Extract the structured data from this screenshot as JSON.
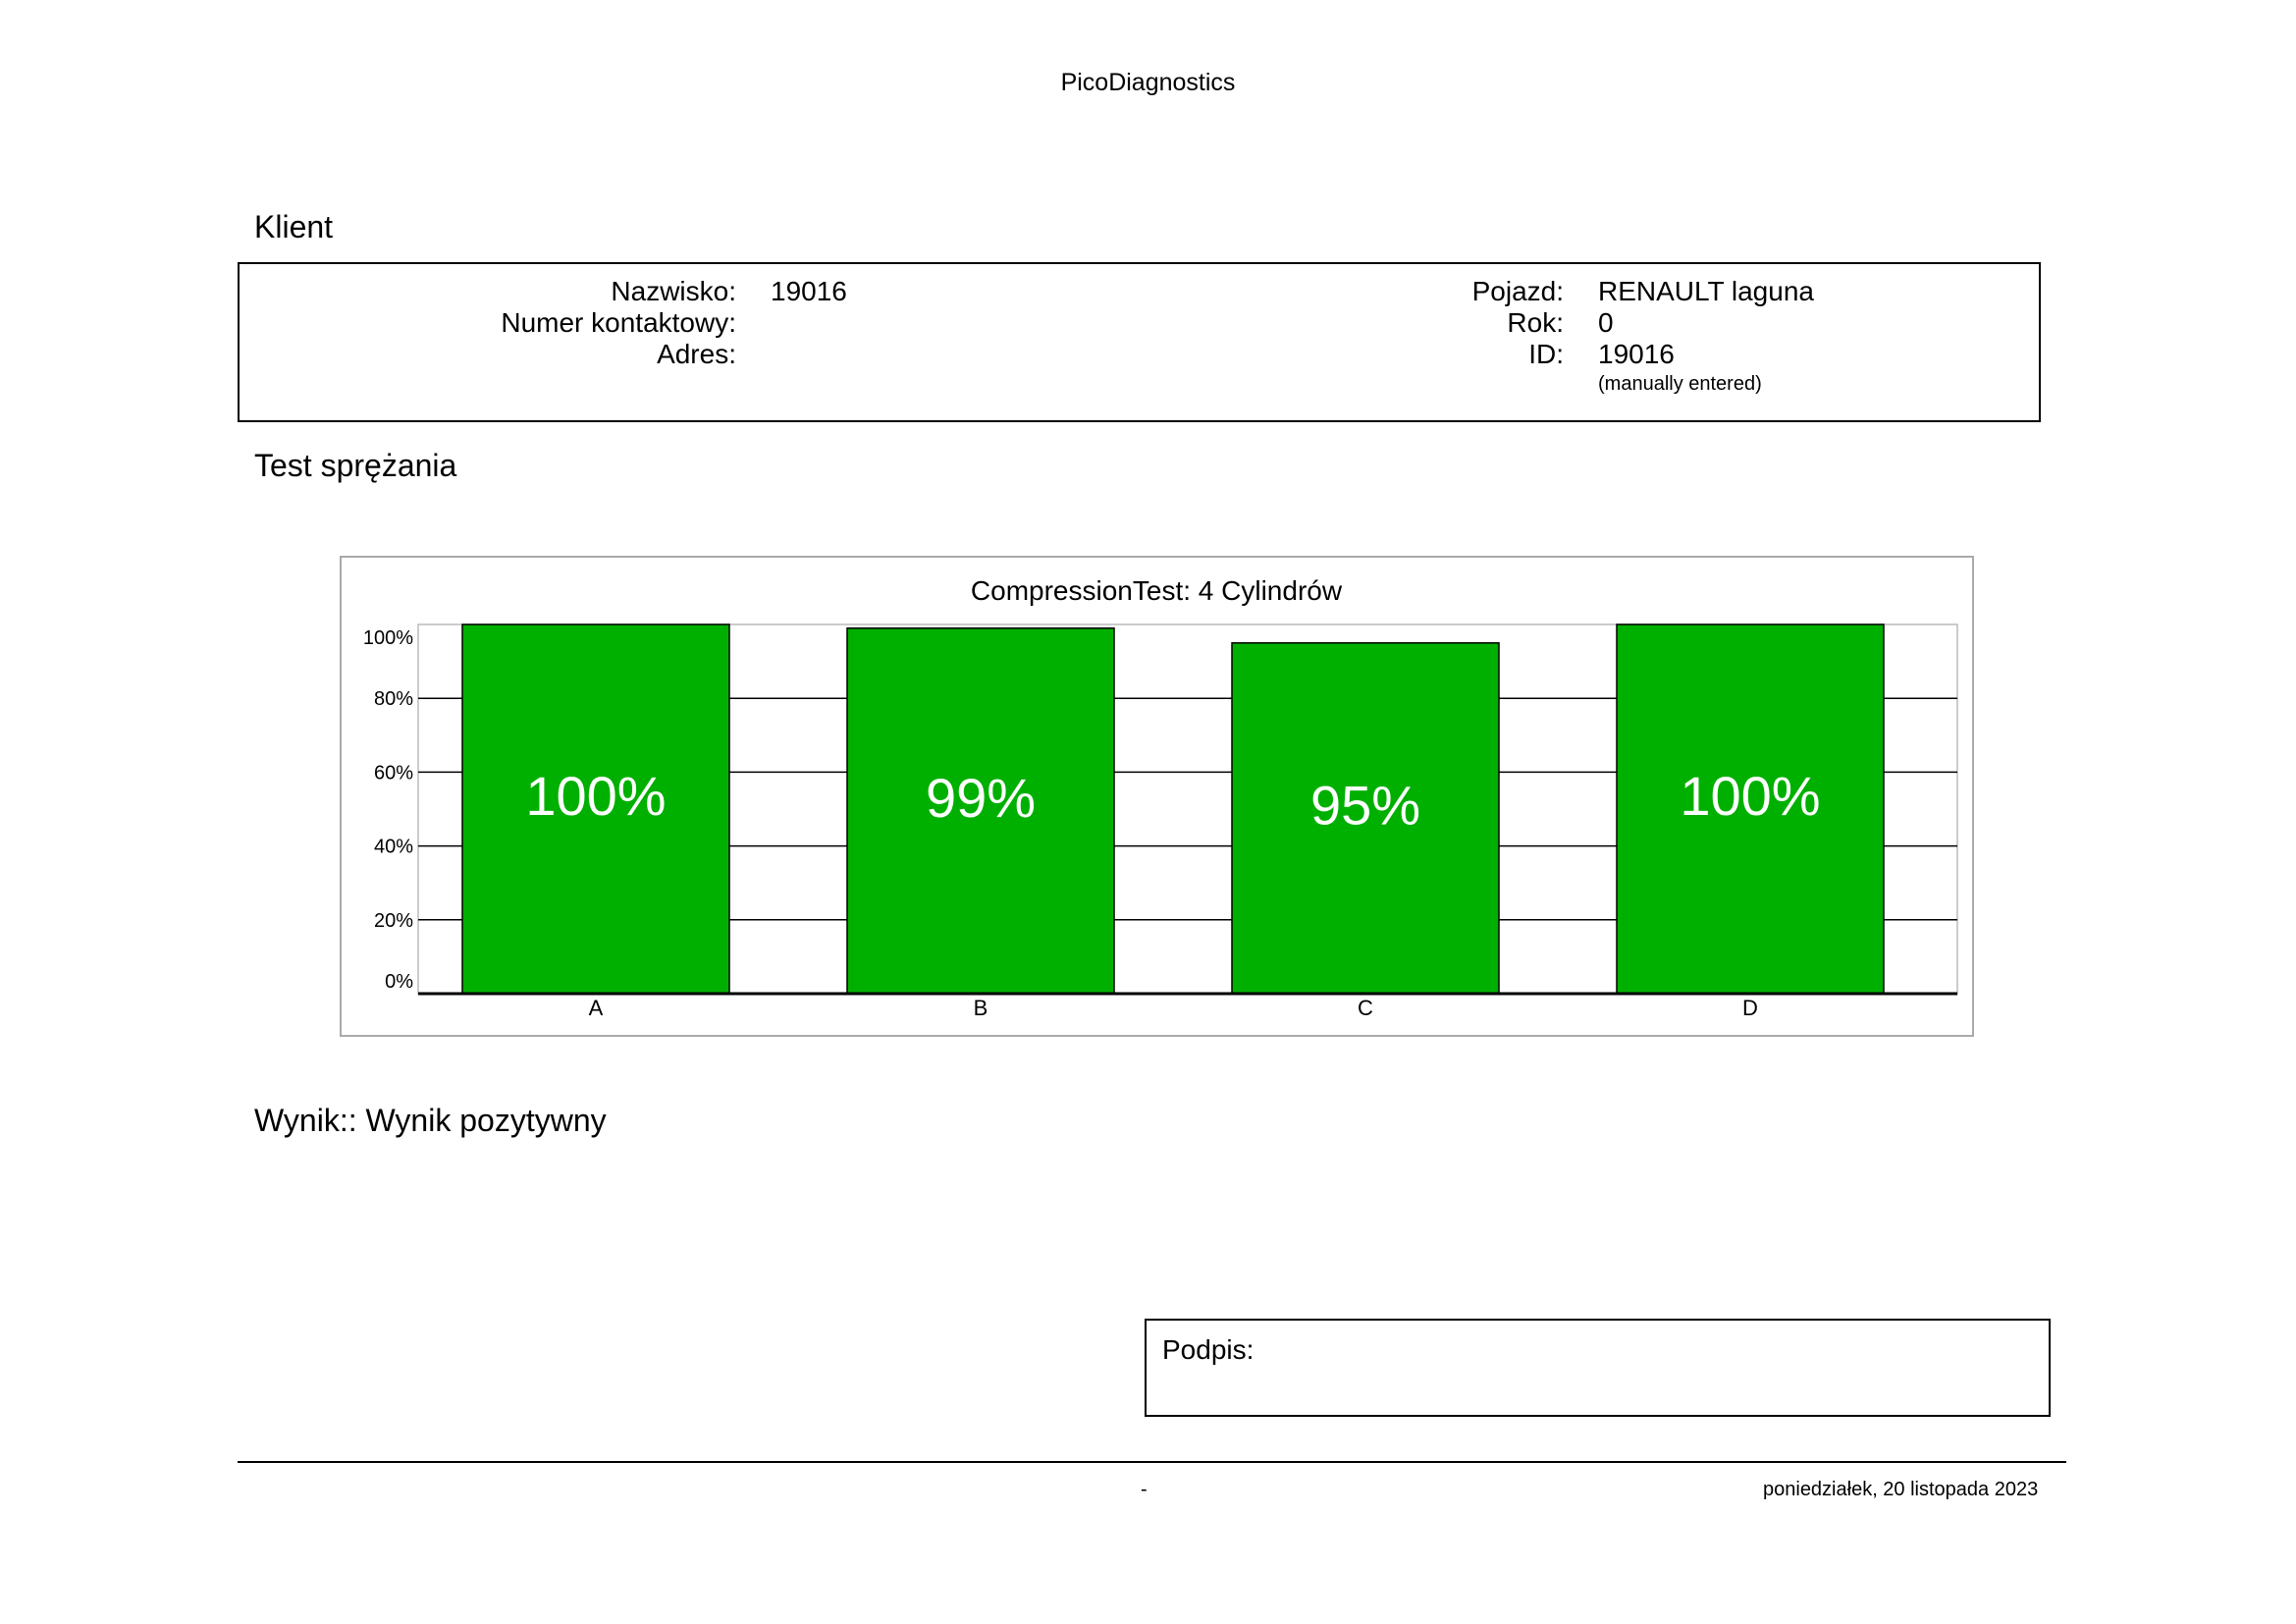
{
  "header": {
    "title": "PicoDiagnostics"
  },
  "client": {
    "heading": "Klient",
    "left": [
      {
        "label": "Nazwisko:",
        "value": "19016"
      },
      {
        "label": "Numer kontaktowy:",
        "value": ""
      },
      {
        "label": "Adres:",
        "value": ""
      }
    ],
    "right": [
      {
        "label": "Pojazd:",
        "value": "RENAULT laguna"
      },
      {
        "label": "Rok:",
        "value": "0"
      },
      {
        "label": "ID:",
        "value": "19016"
      }
    ],
    "id_note": "(manually entered)"
  },
  "test": {
    "heading": "Test sprężania"
  },
  "chart_data": {
    "type": "bar",
    "title": "CompressionTest: 4 Cylindrów",
    "categories": [
      "A",
      "B",
      "C",
      "D"
    ],
    "values": [
      100,
      99,
      95,
      100
    ],
    "data_labels": [
      "100%",
      "99%",
      "95%",
      "100%"
    ],
    "ylim": [
      0,
      100
    ],
    "yticks": [
      0,
      20,
      40,
      60,
      80,
      100
    ],
    "ytick_labels": [
      "0%",
      "20%",
      "40%",
      "60%",
      "80%",
      "100%"
    ],
    "grid": true,
    "bar_color": "#00b000",
    "label_color": "#ffffff"
  },
  "result": {
    "text": "Wynik:: Wynik pozytywny"
  },
  "signature": {
    "label": "Podpis:"
  },
  "footer": {
    "page": "-",
    "date": "poniedziałek, 20 listopada 2023"
  }
}
